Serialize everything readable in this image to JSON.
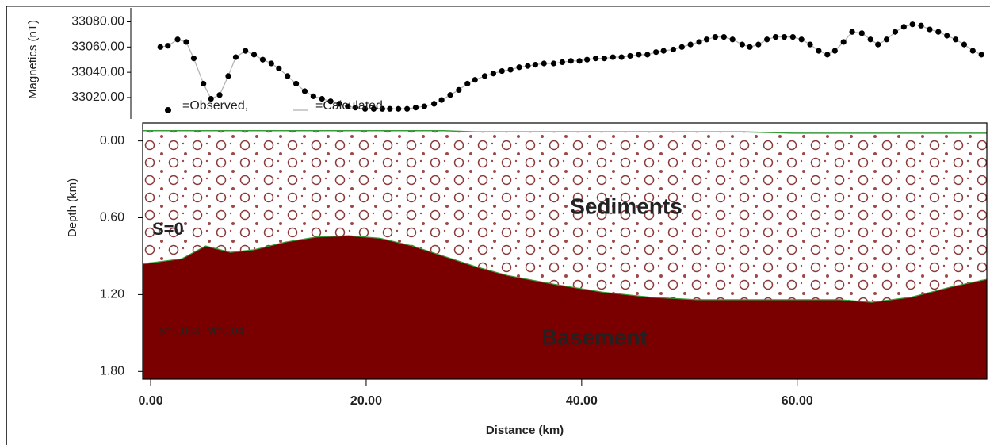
{
  "chart_data": [
    {
      "type": "scatter",
      "ylabel": "Magnetics (nT)",
      "x": [
        0.9,
        1.6,
        2.5,
        3.3,
        4.0,
        4.9,
        5.6,
        6.4,
        7.2,
        7.9,
        8.8,
        9.6,
        10.4,
        11.2,
        11.9,
        12.7,
        13.5,
        14.3,
        15.1,
        15.9,
        16.7,
        17.5,
        18.3,
        19.0,
        19.9,
        20.7,
        21.5,
        22.2,
        23.0,
        23.8,
        24.6,
        25.4,
        26.3,
        27.0,
        27.8,
        28.6,
        29.4,
        30.1,
        31.0,
        31.8,
        32.6,
        33.4,
        34.2,
        35.0,
        35.7,
        36.5,
        37.4,
        38.2,
        39.0,
        39.8,
        40.5,
        41.3,
        42.1,
        42.9,
        43.7,
        44.5,
        45.3,
        46.1,
        46.9,
        47.6,
        48.5,
        49.3,
        50.1,
        50.9,
        51.6,
        52.4,
        53.2,
        54.0,
        54.9,
        55.6,
        56.4,
        57.2,
        58.0,
        58.8,
        59.6,
        60.4,
        61.2,
        62.0,
        62.8,
        63.5,
        64.3,
        65.1,
        66.0,
        66.8,
        67.5,
        68.3,
        69.1,
        69.9,
        70.7,
        71.5,
        72.3,
        73.1,
        73.9,
        74.7,
        75.5,
        76.3,
        77.1
      ],
      "series": [
        {
          "name": "=Observed,",
          "color": "#000000",
          "values": [
            33060,
            33061,
            33066,
            33064,
            33051,
            33031,
            33019,
            33022,
            33037,
            33052,
            33057,
            33054,
            33050,
            33047,
            33043,
            33037,
            33031,
            33025,
            33021,
            33019,
            33017,
            33015,
            33013,
            33012,
            33011,
            33011,
            33011,
            33011,
            33011,
            33011,
            33012,
            33013,
            33015,
            33018,
            33022,
            33026,
            33031,
            33034,
            33037,
            33039,
            33041,
            33042,
            33044,
            33045,
            33046,
            33047,
            33047,
            33048,
            33049,
            33049,
            33050,
            33051,
            33051,
            33052,
            33052,
            33053,
            33054,
            33054,
            33056,
            33057,
            33058,
            33060,
            33062,
            33064,
            33066,
            33068,
            33068,
            33066,
            33062,
            33060,
            33062,
            33066,
            33068,
            33068,
            33068,
            33066,
            33062,
            33057,
            33054,
            33057,
            33064,
            33072,
            33071,
            33066,
            33062,
            33066,
            33072,
            33076,
            33078,
            33077,
            33074,
            33072,
            33069,
            33066,
            33062,
            33057,
            33054
          ]
        },
        {
          "name": "=Calculated",
          "color": "#b0b0b0",
          "values": [
            33060,
            33061,
            33066,
            33064,
            33051,
            33031,
            33019,
            33022,
            33037,
            33052,
            33057,
            33054,
            33050,
            33047,
            33043,
            33037,
            33031,
            33025,
            33021,
            33019,
            33017,
            33015,
            33013,
            33012,
            33011,
            33011,
            33011,
            33011,
            33011,
            33011,
            33012,
            33013,
            33015,
            33018,
            33022,
            33026,
            33031,
            33034,
            33037,
            33039,
            33041,
            33042,
            33044,
            33045,
            33046,
            33047,
            33047,
            33048,
            33049,
            33049,
            33050,
            33051,
            33051,
            33052,
            33052,
            33053,
            33054,
            33054,
            33056,
            33057,
            33058,
            33060,
            33062,
            33064,
            33066,
            33068,
            33068,
            33066,
            33062,
            33060,
            33062,
            33066,
            33068,
            33068,
            33068,
            33066,
            33062,
            33057,
            33054,
            33057,
            33064,
            33072,
            33071,
            33066,
            33062,
            33066,
            33072,
            33076,
            33078,
            33077,
            33074,
            33072,
            33069,
            33066,
            33062,
            33057,
            33054
          ]
        }
      ],
      "xlim": [
        -0.74,
        77.6
      ],
      "ylim": [
        33003,
        33091
      ],
      "yticks": [
        {
          "value": 33020,
          "label": "33020.00"
        },
        {
          "value": 33040,
          "label": "33040.00"
        },
        {
          "value": 33060,
          "label": "33060.00"
        },
        {
          "value": 33080,
          "label": "33080.00"
        }
      ]
    },
    {
      "type": "cross-section",
      "xlabel": "Distance (km)",
      "ylabel": "Depth (km)",
      "x": [
        -0.7,
        2.9,
        5.1,
        7.4,
        9.6,
        12.5,
        15.4,
        18.4,
        21.3,
        24.3,
        27.2,
        30.1,
        33.1,
        37.5,
        41.9,
        46.3,
        50.7,
        55.1,
        59.6,
        64.0,
        66.9,
        70.6,
        74.3,
        77.6
      ],
      "layers": [
        {
          "name": "Sediments",
          "annotation": "S=0",
          "color": "#7a1a1a",
          "line_color": "#3a9a3a",
          "top": [
            -0.08,
            -0.08,
            -0.08,
            -0.08,
            -0.08,
            -0.08,
            -0.08,
            -0.08,
            -0.08,
            -0.08,
            -0.08,
            -0.07,
            -0.07,
            -0.07,
            -0.07,
            -0.07,
            -0.07,
            -0.07,
            -0.06,
            -0.06,
            -0.06,
            -0.06,
            -0.06,
            -0.06
          ]
        },
        {
          "name": "Basement",
          "annotation": "S=0.003, M=0.04",
          "color": "#7a0000",
          "line_color": "#3a9a3a",
          "top": [
            0.96,
            0.92,
            0.82,
            0.87,
            0.85,
            0.79,
            0.75,
            0.74,
            0.76,
            0.82,
            0.9,
            0.98,
            1.05,
            1.12,
            1.18,
            1.22,
            1.24,
            1.24,
            1.24,
            1.24,
            1.26,
            1.22,
            1.14,
            1.08
          ]
        }
      ],
      "xlim": [
        -0.74,
        77.6
      ],
      "ylim": [
        -0.14,
        1.86
      ],
      "y_inverted": true,
      "xticks": [
        {
          "value": 0,
          "label": "0.00"
        },
        {
          "value": 20,
          "label": "20.00"
        },
        {
          "value": 40,
          "label": "40.00"
        },
        {
          "value": 60,
          "label": "60.00"
        }
      ],
      "yticks": [
        {
          "value": 0,
          "label": "0.00"
        },
        {
          "value": 0.6,
          "label": "0.60"
        },
        {
          "value": 1.2,
          "label": "1.20"
        },
        {
          "value": 1.8,
          "label": "1.80"
        }
      ]
    }
  ]
}
